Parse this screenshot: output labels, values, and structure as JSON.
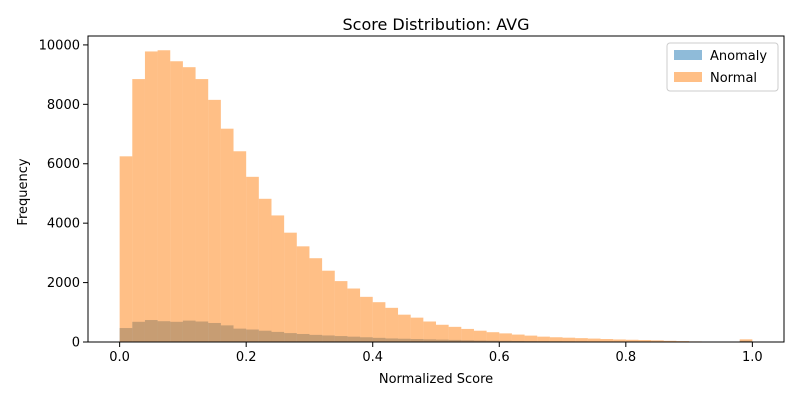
{
  "chart_data": {
    "type": "bar",
    "title": "Score Distribution: AVG",
    "xlabel": "Normalized Score",
    "ylabel": "Frequency",
    "xlim": [
      -0.05,
      1.05
    ],
    "ylim": [
      0,
      10300
    ],
    "xticks": [
      0.0,
      0.2,
      0.4,
      0.6,
      0.8,
      1.0
    ],
    "xtick_labels": [
      "0.0",
      "0.2",
      "0.4",
      "0.6",
      "0.8",
      "1.0"
    ],
    "yticks": [
      0,
      2000,
      4000,
      6000,
      8000,
      10000
    ],
    "ytick_labels": [
      "0",
      "2000",
      "4000",
      "6000",
      "8000",
      "10000"
    ],
    "bins": 50,
    "bin_range": [
      0.0,
      1.0
    ],
    "grid": false,
    "legend_position": "top-right",
    "series": [
      {
        "name": "Anomaly",
        "color": "#1f77b4",
        "alpha": 0.5,
        "values": [
          470,
          680,
          740,
          700,
          680,
          720,
          690,
          640,
          560,
          450,
          420,
          380,
          340,
          300,
          270,
          240,
          220,
          200,
          180,
          160,
          140,
          120,
          110,
          100,
          90,
          80,
          70,
          60,
          50,
          45,
          40,
          35,
          30,
          28,
          25,
          22,
          20,
          18,
          16,
          14,
          12,
          11,
          10,
          9,
          8,
          7,
          6,
          5,
          5,
          40
        ]
      },
      {
        "name": "Normal",
        "color": "#ff7f0e",
        "alpha": 0.5,
        "values": [
          6250,
          8850,
          9780,
          9820,
          9450,
          9250,
          8850,
          8150,
          7180,
          6420,
          5560,
          4820,
          4260,
          3680,
          3220,
          2820,
          2400,
          2050,
          1800,
          1520,
          1340,
          1150,
          920,
          820,
          690,
          580,
          510,
          440,
          380,
          330,
          290,
          250,
          215,
          180,
          160,
          145,
          130,
          115,
          100,
          85,
          75,
          65,
          55,
          40,
          30,
          20,
          15,
          10,
          5,
          90
        ]
      }
    ]
  }
}
